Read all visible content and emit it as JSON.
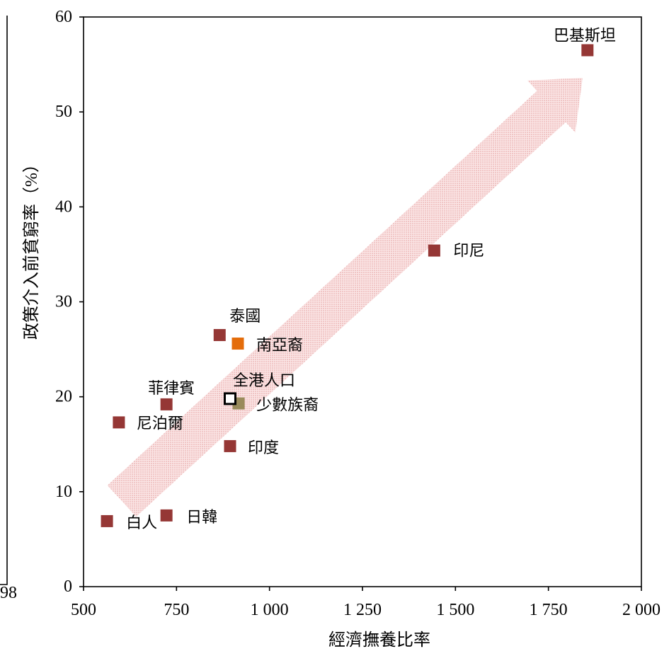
{
  "chart_data": {
    "type": "scatter",
    "title": "",
    "xlabel": "經濟撫養比率",
    "ylabel": "政策介入前貧窮率（%）",
    "xlim": [
      500,
      2000
    ],
    "ylim": [
      0,
      60
    ],
    "x_ticks": [
      500,
      750,
      1000,
      1250,
      1500,
      1750,
      2000
    ],
    "x_tick_labels": [
      "500",
      "750",
      "1 000",
      "1 250",
      "1 500",
      "1 750",
      "2 000"
    ],
    "y_ticks": [
      0,
      10,
      20,
      30,
      40,
      50,
      60
    ],
    "y_tick_labels": [
      "0",
      "10",
      "20",
      "30",
      "40",
      "50",
      "60"
    ],
    "grid": false,
    "legend": false,
    "points": [
      {
        "label": "巴基斯坦",
        "x": 1855,
        "y": 56.5,
        "color": "#953735",
        "style": "filled"
      },
      {
        "label": "印尼",
        "x": 1443,
        "y": 35.4,
        "color": "#953735",
        "style": "filled"
      },
      {
        "label": "泰國",
        "x": 866,
        "y": 26.5,
        "color": "#953735",
        "style": "filled"
      },
      {
        "label": "南亞裔",
        "x": 915,
        "y": 25.6,
        "color": "#e46c0a",
        "style": "filled"
      },
      {
        "label": "少數族裔",
        "x": 917,
        "y": 19.3,
        "color": "#998b5c",
        "style": "filled"
      },
      {
        "label": "全港人口",
        "x": 894,
        "y": 19.8,
        "color": "#000000",
        "style": "hollow"
      },
      {
        "label": "菲律賓",
        "x": 723,
        "y": 19.2,
        "color": "#953735",
        "style": "filled"
      },
      {
        "label": "尼泊爾",
        "x": 595,
        "y": 17.3,
        "color": "#953735",
        "style": "filled"
      },
      {
        "label": "印度",
        "x": 894,
        "y": 14.8,
        "color": "#953735",
        "style": "filled"
      },
      {
        "label": "日韓",
        "x": 723,
        "y": 7.5,
        "color": "#953735",
        "style": "filled"
      },
      {
        "label": "白人",
        "x": 563,
        "y": 6.9,
        "color": "#953735",
        "style": "filled"
      }
    ],
    "trend_arrow": {
      "direction": "up-right",
      "color": "#f2c4c4"
    }
  },
  "neighbor_fragment": {
    "tick_label": "98"
  }
}
